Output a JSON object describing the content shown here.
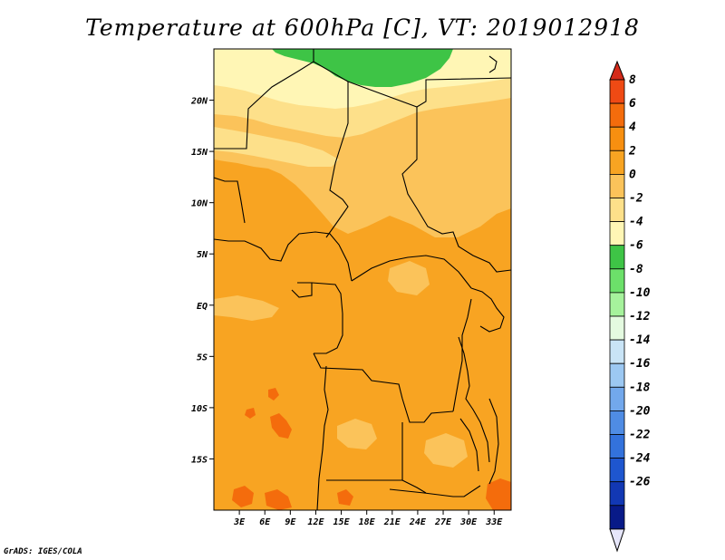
{
  "title": "Temperature at 600hPa [C], VT: 2019012918",
  "credit": "GrADS: IGES/COLA",
  "map": {
    "lon_range": [
      0,
      35
    ],
    "lat_range": [
      -20,
      25
    ],
    "lat_ticks": [
      {
        "value": 20,
        "label": "20N"
      },
      {
        "value": 15,
        "label": "15N"
      },
      {
        "value": 10,
        "label": "10N"
      },
      {
        "value": 5,
        "label": "5N"
      },
      {
        "value": 0,
        "label": "EQ"
      },
      {
        "value": -5,
        "label": "5S"
      },
      {
        "value": -10,
        "label": "10S"
      },
      {
        "value": -15,
        "label": "15S"
      }
    ],
    "lon_ticks": [
      {
        "value": 3,
        "label": "3E"
      },
      {
        "value": 6,
        "label": "6E"
      },
      {
        "value": 9,
        "label": "9E"
      },
      {
        "value": 12,
        "label": "12E"
      },
      {
        "value": 15,
        "label": "15E"
      },
      {
        "value": 18,
        "label": "18E"
      },
      {
        "value": 21,
        "label": "21E"
      },
      {
        "value": 24,
        "label": "24E"
      },
      {
        "value": 27,
        "label": "27E"
      },
      {
        "value": 30,
        "label": "30E"
      },
      {
        "value": 33,
        "label": "33E"
      }
    ]
  },
  "colorbar": {
    "top_color": "#d42a1a",
    "bottom_color": "#e6e6fa",
    "bins": [
      {
        "color": "#ef4a14"
      },
      {
        "color": "#f46c0c"
      },
      {
        "color": "#f78f10"
      },
      {
        "color": "#f8a422"
      },
      {
        "color": "#fbc35a"
      },
      {
        "color": "#fde08a"
      },
      {
        "color": "#fff6b5"
      },
      {
        "color": "#3ec446"
      },
      {
        "color": "#6ce06a"
      },
      {
        "color": "#a6f29c"
      },
      {
        "color": "#e4fae0"
      },
      {
        "color": "#c9e4f6"
      },
      {
        "color": "#9cc8f2"
      },
      {
        "color": "#72a8ec"
      },
      {
        "color": "#4f8ce4"
      },
      {
        "color": "#3372dc"
      },
      {
        "color": "#1e56cf"
      },
      {
        "color": "#1238b4"
      },
      {
        "color": "#081a88"
      }
    ],
    "labels": [
      "8",
      "6",
      "4",
      "2",
      "0",
      "-2",
      "-4",
      "-6",
      "-8",
      "-10",
      "-12",
      "-14",
      "-16",
      "-18",
      "-20",
      "-22",
      "-24",
      "-26"
    ]
  }
}
